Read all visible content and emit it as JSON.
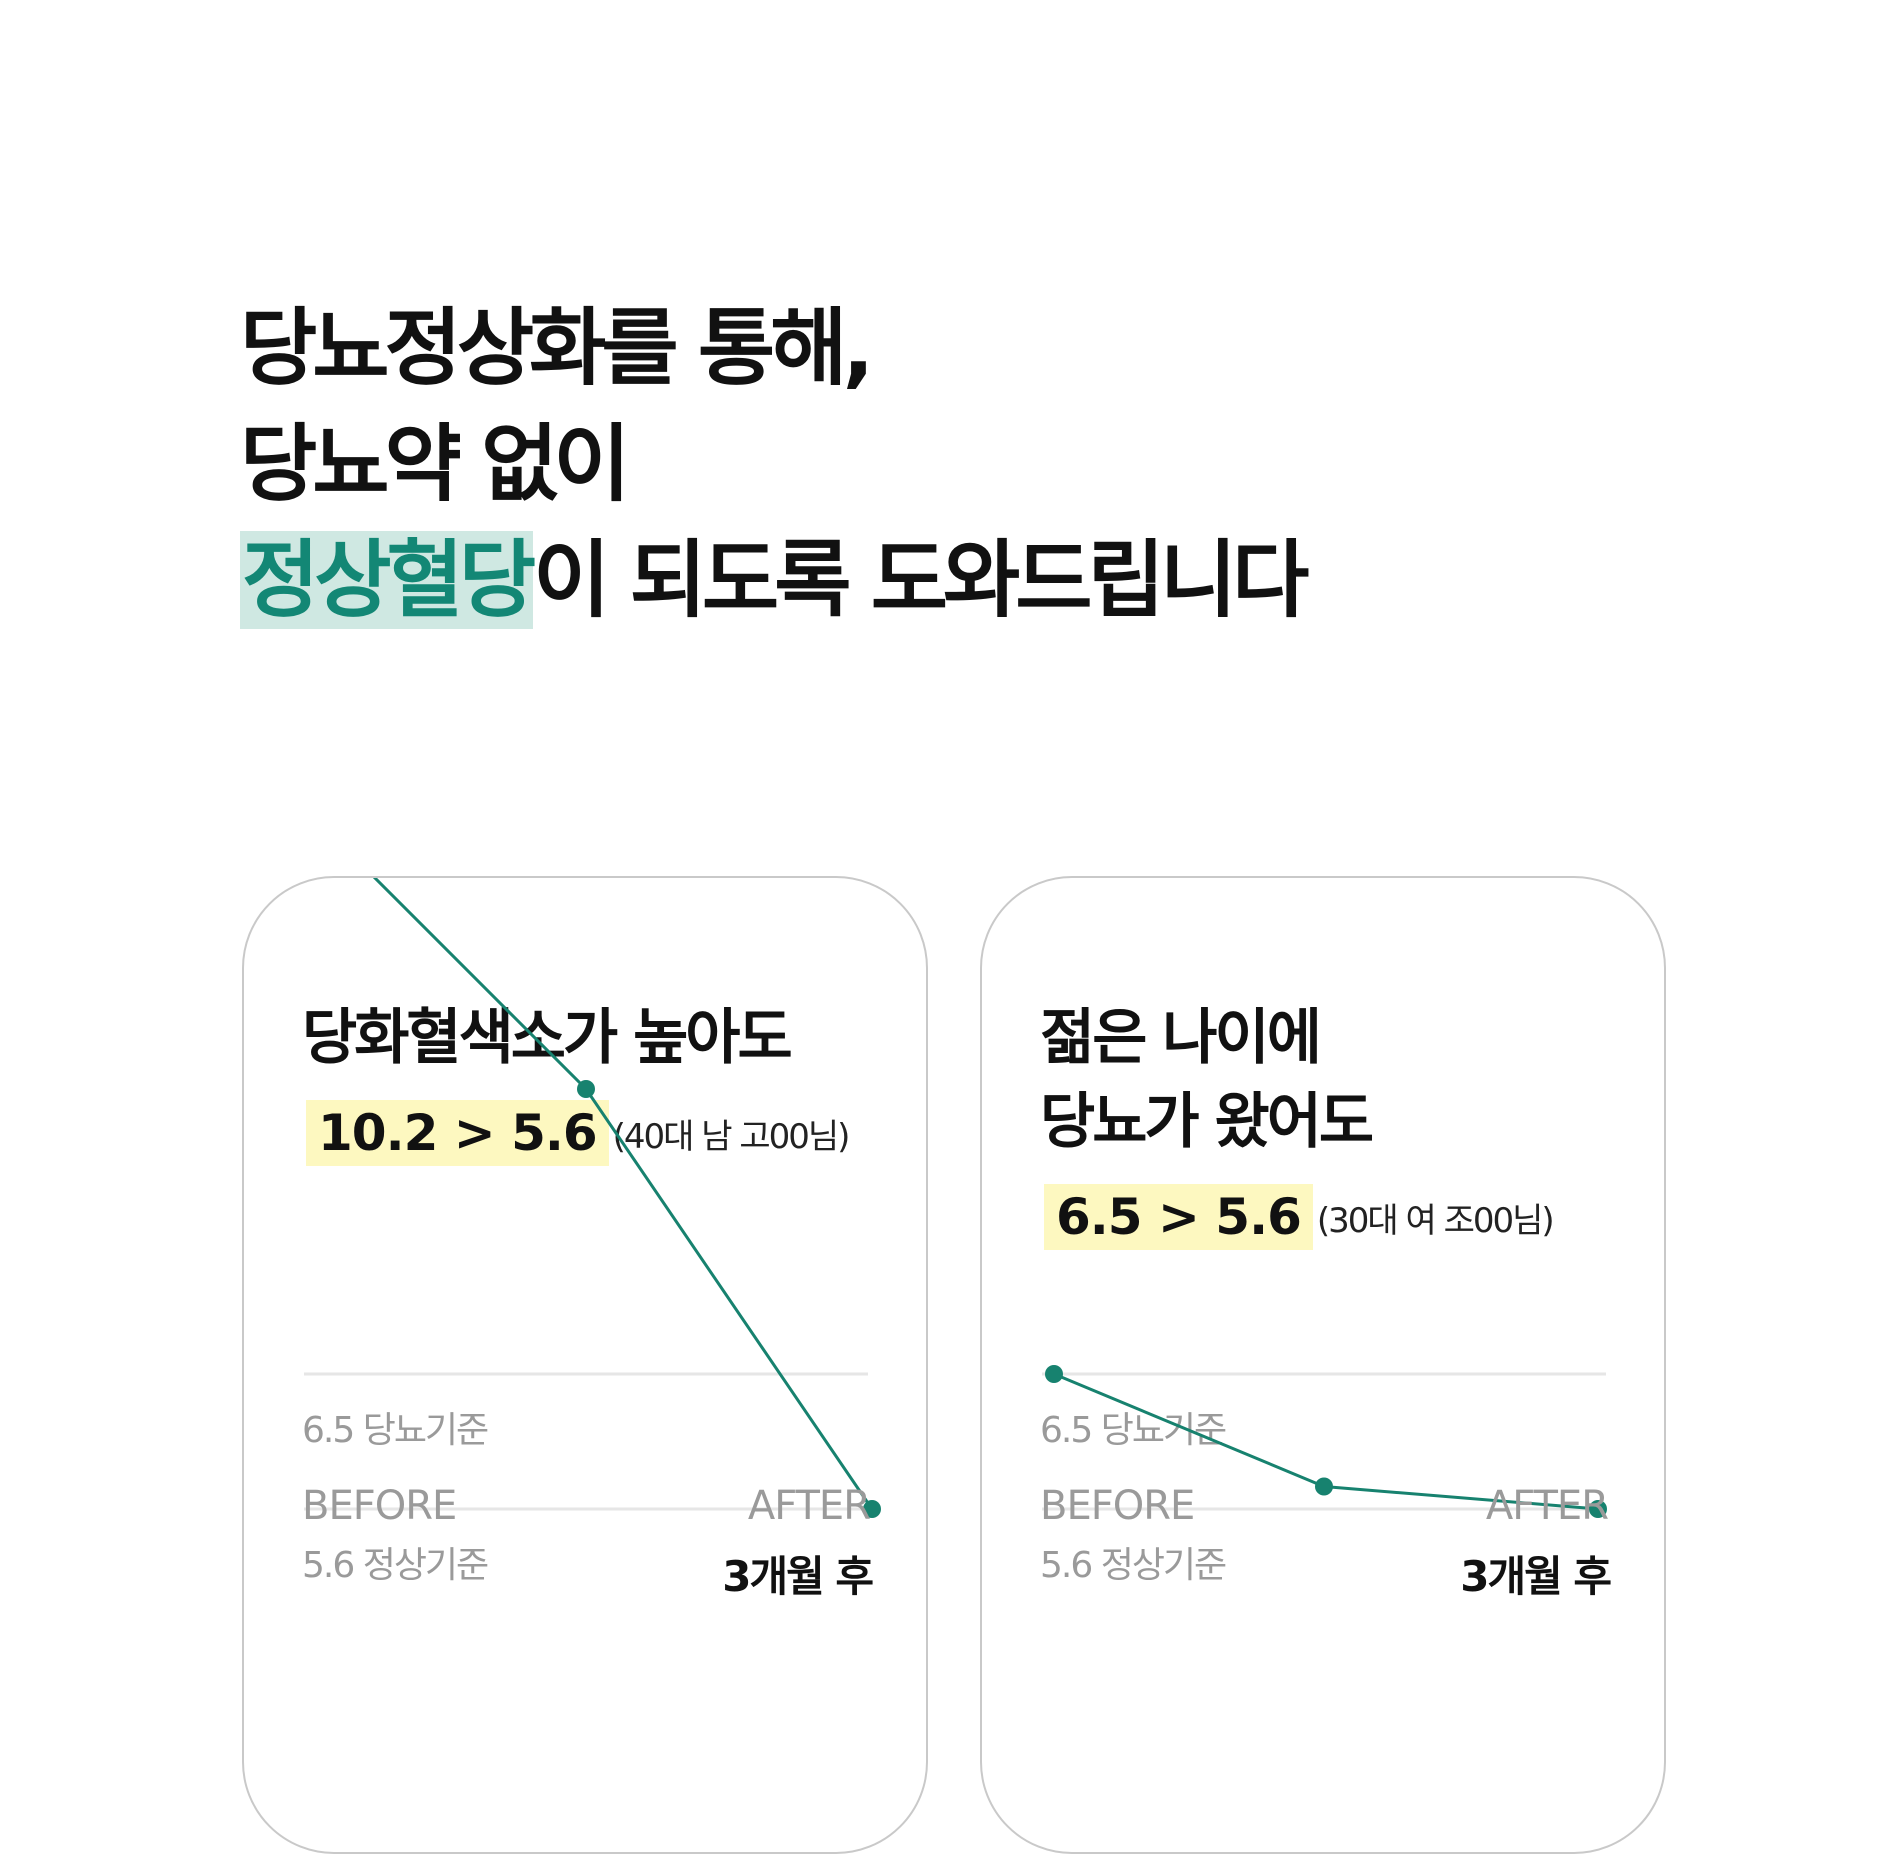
{
  "headline": {
    "line1": "당뇨정상화를 통해,",
    "line2": "당뇨약 없이",
    "line3_highlight": "정상혈당",
    "line3_rest": "이 되도록 도와드립니다"
  },
  "colors": {
    "accent": "#138775",
    "highlight_bg": "#cfe8e2",
    "value_bg": "#fdf8c0",
    "line": "#17826f",
    "muted": "#9a9a9a"
  },
  "cards": [
    {
      "title_lines": [
        "당화혈색소가 높아도"
      ],
      "value": "10.2 > 5.6",
      "note": "(40대 남 고00님)",
      "before_label": "BEFORE",
      "after_label": "AFTER",
      "period_label": "3개월 후"
    },
    {
      "title_lines": [
        "젊은 나이에",
        "당뇨가 왔어도"
      ],
      "value": "6.5 > 5.6",
      "note": "(30대 여 조00님)",
      "before_label": "BEFORE",
      "after_label": "AFTER",
      "period_label": "3개월 후"
    }
  ],
  "chart_data": [
    {
      "type": "line",
      "title": "당화혈색소가 높아도",
      "x": [
        "BEFORE",
        "",
        "AFTER"
      ],
      "series": [
        {
          "values": [
            10.2,
            8.4,
            5.6
          ]
        }
      ],
      "reference_lines": [
        {
          "value": 6.5,
          "label": "6.5 당뇨기준"
        },
        {
          "value": 5.6,
          "label": "5.6 정상기준"
        }
      ],
      "grid": false
    },
    {
      "type": "line",
      "title": "젊은 나이에 당뇨가 왔어도",
      "x": [
        "BEFORE",
        "",
        "AFTER"
      ],
      "series": [
        {
          "values": [
            6.5,
            5.75,
            5.6
          ]
        }
      ],
      "reference_lines": [
        {
          "value": 6.5,
          "label": "6.5 당뇨기준"
        },
        {
          "value": 5.6,
          "label": "5.6 정상기준"
        }
      ],
      "grid": false
    }
  ]
}
